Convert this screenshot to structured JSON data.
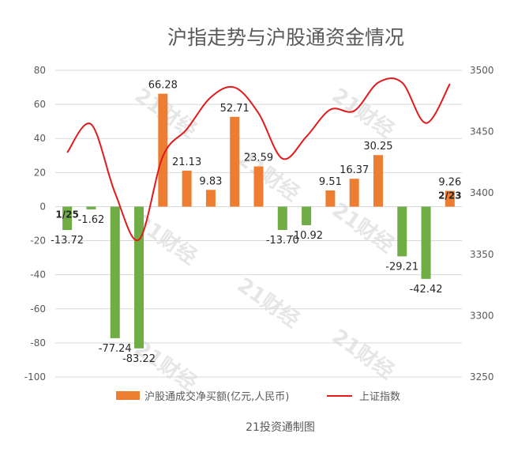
{
  "chart_data": {
    "type": "bar",
    "title": "沪指走势与沪股通资金情况",
    "caption": "21投资通制图",
    "watermark": "21财经",
    "grid": true,
    "legend_position": "bottom",
    "y_left": {
      "ylim": [
        -100,
        80
      ],
      "ticks": [
        "80",
        "60",
        "40",
        "20",
        "0",
        "-20",
        "-40",
        "-60",
        "-80",
        "-100"
      ]
    },
    "y_right": {
      "ylim": [
        3250,
        3500
      ],
      "ticks": [
        "3500",
        "3450",
        "3400",
        "3350",
        "3300",
        "3250"
      ]
    },
    "x_first_label": "1/25",
    "x_last_label": "2/23",
    "series": [
      {
        "name": "沪股通成交净买额(亿元,人民币)",
        "kind": "bar",
        "positive_color": "#ED7D31",
        "negative_color": "#70AD47",
        "values": [
          -13.72,
          -1.62,
          -77.24,
          -83.22,
          66.28,
          21.13,
          9.83,
          52.71,
          23.59,
          -13.7,
          -10.92,
          9.51,
          16.37,
          30.25,
          -29.21,
          -42.42,
          9.26
        ],
        "labels": [
          "-13.72",
          "-1.62",
          "-77.24",
          "-83.22",
          "66.28",
          "21.13",
          "9.83",
          "52.71",
          "23.59",
          "-13.70",
          "-10.92",
          "9.51",
          "16.37",
          "30.25",
          "-29.21",
          "-42.42",
          "9.26"
        ]
      },
      {
        "name": "上证指数",
        "kind": "line",
        "color": "#E31A1C",
        "axis": "right",
        "values": [
          3433,
          3456,
          3400,
          3362,
          3430,
          3452,
          3478,
          3486,
          3465,
          3428,
          3446,
          3468,
          3467,
          3490,
          3490,
          3457,
          3489
        ]
      }
    ]
  }
}
